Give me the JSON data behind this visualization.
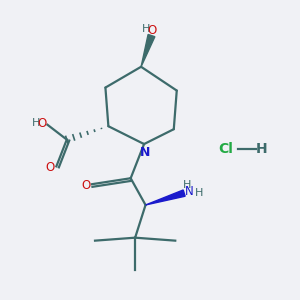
{
  "background_color": "#f0f1f5",
  "bond_color": "#3d6b6b",
  "N_color": "#1a1acc",
  "O_color": "#cc1111",
  "Cl_color": "#22aa44",
  "text_color": "#3d6b6b",
  "figsize": [
    3.0,
    3.0
  ],
  "dpi": 100,
  "xlim": [
    0,
    10
  ],
  "ylim": [
    0,
    10
  ]
}
